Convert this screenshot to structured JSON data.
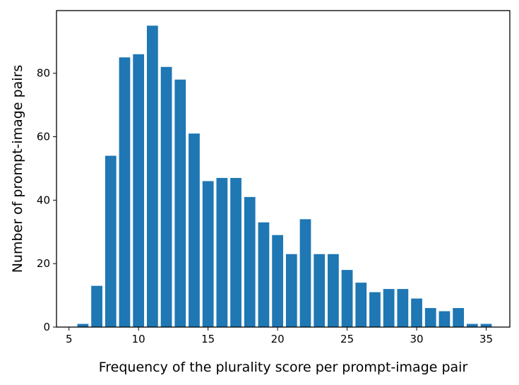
{
  "chart_data": {
    "type": "bar",
    "title": "",
    "xlabel": "Frequency of the plurality score per prompt-image pair",
    "ylabel": "Number of prompt-image pairs",
    "x": [
      6,
      7,
      8,
      9,
      10,
      11,
      12,
      13,
      14,
      15,
      16,
      17,
      18,
      19,
      20,
      21,
      22,
      23,
      24,
      25,
      26,
      27,
      28,
      29,
      30,
      31,
      32,
      33,
      34,
      35
    ],
    "values": [
      1,
      13,
      54,
      85,
      86,
      95,
      82,
      78,
      61,
      46,
      47,
      47,
      41,
      33,
      29,
      23,
      34,
      23,
      23,
      18,
      14,
      11,
      12,
      12,
      9,
      6,
      5,
      6,
      1,
      1
    ],
    "xlim": [
      4.1,
      36.7
    ],
    "ylim": [
      0,
      99.75
    ],
    "xticks": [
      5,
      10,
      15,
      20,
      25,
      30,
      35
    ],
    "yticks": [
      0,
      20,
      40,
      60,
      80
    ],
    "bar_width": 0.8,
    "bar_color": "#1f77b4",
    "grid": false,
    "legend": "none"
  }
}
